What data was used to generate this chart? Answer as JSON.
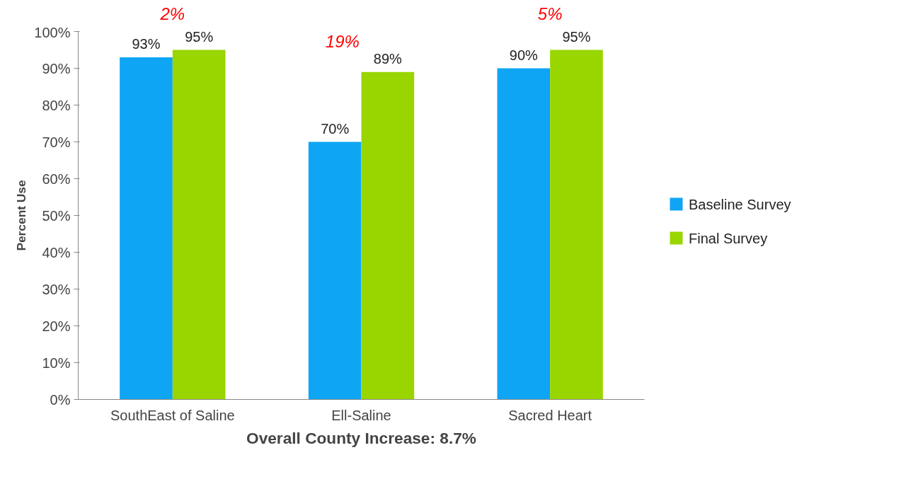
{
  "chart_data": {
    "type": "bar",
    "xlabel": "Overall County Increase: 8.7%",
    "ylabel": "Percent Use",
    "categories": [
      "SouthEast of Saline",
      "Ell-Saline",
      "Sacred Heart"
    ],
    "series": [
      {
        "name": "Baseline Survey",
        "color": "#0ea5f5",
        "values": [
          93,
          70,
          90
        ],
        "value_labels": [
          "93%",
          "70%",
          "90%"
        ]
      },
      {
        "name": "Final Survey",
        "color": "#99d600",
        "values": [
          95,
          89,
          95
        ],
        "value_labels": [
          "95%",
          "89%",
          "95%"
        ]
      }
    ],
    "ylim": [
      0,
      100
    ],
    "yticks": [
      {
        "value": 0,
        "label": "0%"
      },
      {
        "value": 10,
        "label": "10%"
      },
      {
        "value": 20,
        "label": "20%"
      },
      {
        "value": 30,
        "label": "30%"
      },
      {
        "value": 40,
        "label": "40%"
      },
      {
        "value": 50,
        "label": "50%"
      },
      {
        "value": 60,
        "label": "60%"
      },
      {
        "value": 70,
        "label": "70%"
      },
      {
        "value": 80,
        "label": "80%"
      },
      {
        "value": 90,
        "label": "90%"
      },
      {
        "value": 100,
        "label": "100%"
      }
    ],
    "annotations": [
      "2%",
      "19%",
      "5%"
    ],
    "grid": false,
    "legend": "right"
  }
}
